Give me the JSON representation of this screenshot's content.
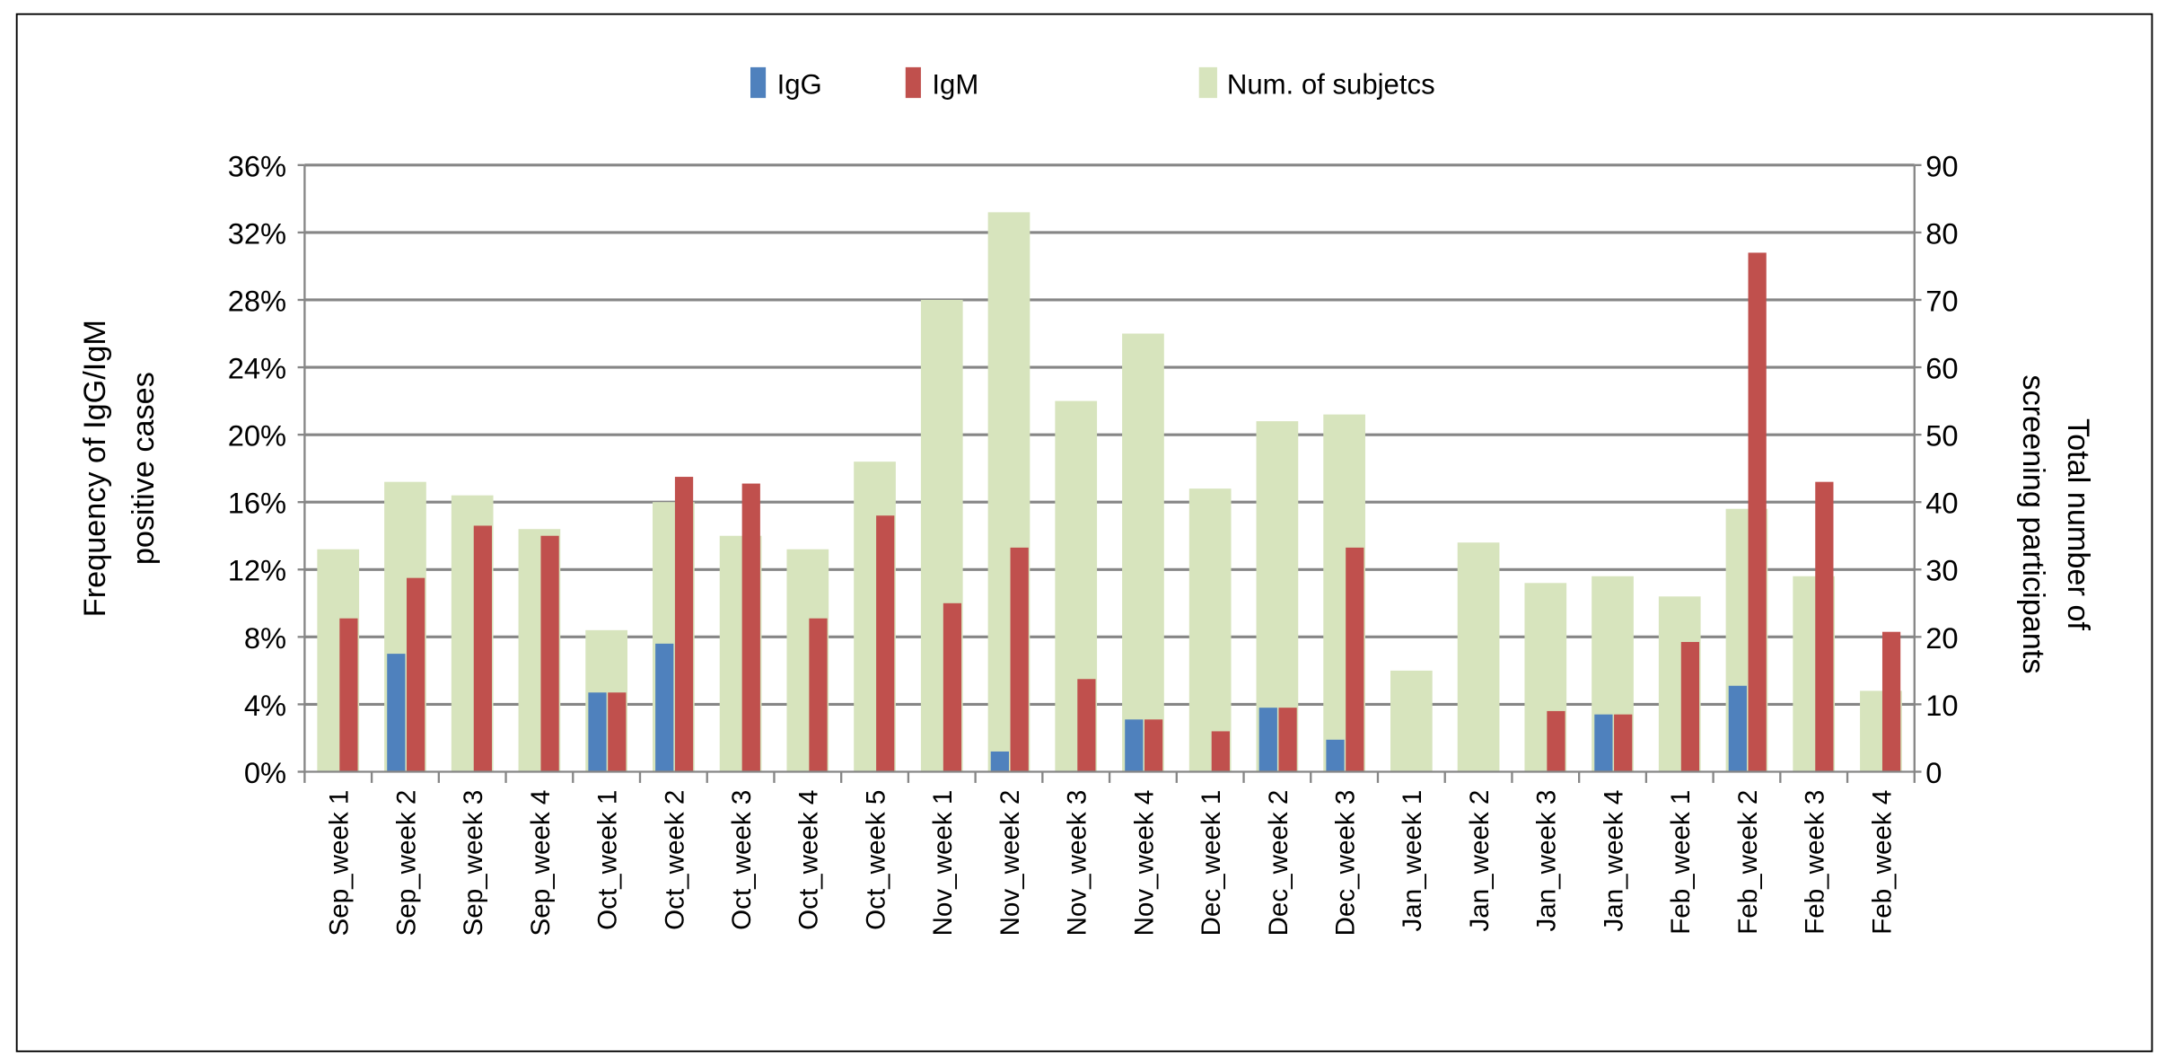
{
  "chart_data": {
    "type": "bar",
    "title": "",
    "categories": [
      "Sep_week 1",
      "Sep_week 2",
      "Sep_week 3",
      "Sep_week 4",
      "Oct_week 1",
      "Oct_week 2",
      "Oct_week 3",
      "Oct_week 4",
      "Oct_week 5",
      "Nov_week 1",
      "Nov_week 2",
      "Nov_week 3",
      "Nov_week 4",
      "Dec_week 1",
      "Dec_week 2",
      "Dec_week 3",
      "Jan_week 1",
      "Jan_week 2",
      "Jan_week 3",
      "Jan_week 4",
      "Feb_week 1",
      "Feb_week 2",
      "Feb_week 3",
      "Feb_week 4"
    ],
    "series": [
      {
        "name": "IgG",
        "axis": "left",
        "unit": "%",
        "color": "#4f81bd",
        "values": [
          0,
          7.0,
          0,
          0,
          4.7,
          7.6,
          0,
          0,
          0,
          0,
          1.2,
          0,
          3.1,
          0,
          3.8,
          1.9,
          0,
          0,
          0,
          3.4,
          0,
          5.1,
          0,
          0
        ]
      },
      {
        "name": "IgM",
        "axis": "left",
        "unit": "%",
        "color": "#c0504d",
        "values": [
          9.1,
          11.5,
          14.6,
          14.0,
          4.7,
          17.5,
          17.1,
          9.1,
          15.2,
          10.0,
          13.3,
          5.5,
          3.1,
          2.4,
          3.8,
          13.3,
          0,
          0,
          3.6,
          3.4,
          7.7,
          30.8,
          17.2,
          8.3
        ]
      },
      {
        "name": "Num. of subjetcs",
        "axis": "right",
        "color": "#d7e4bd",
        "values": [
          33,
          43,
          41,
          36,
          21,
          40,
          35,
          33,
          46,
          70,
          83,
          55,
          65,
          42,
          52,
          53,
          15,
          34,
          28,
          29,
          26,
          39,
          29,
          12
        ]
      }
    ],
    "ylabel": "Frequency of IgG/IgM positive cases",
    "ylabel_lines": [
      "Frequency of IgG/IgM",
      "positive cases"
    ],
    "y2label": "Total number of screening participants",
    "y2label_lines": [
      "Total number of",
      "screening participants"
    ],
    "ylim": [
      0,
      36
    ],
    "y2lim": [
      0,
      90
    ],
    "yticks": [
      "0%",
      "4%",
      "8%",
      "12%",
      "16%",
      "20%",
      "24%",
      "28%",
      "32%",
      "36%"
    ],
    "y2ticks": [
      "0",
      "10",
      "20",
      "30",
      "40",
      "50",
      "60",
      "70",
      "80",
      "90"
    ],
    "legend": [
      "IgG",
      "IgM",
      "Num. of subjetcs"
    ],
    "legend_position": "top",
    "grid": true
  }
}
